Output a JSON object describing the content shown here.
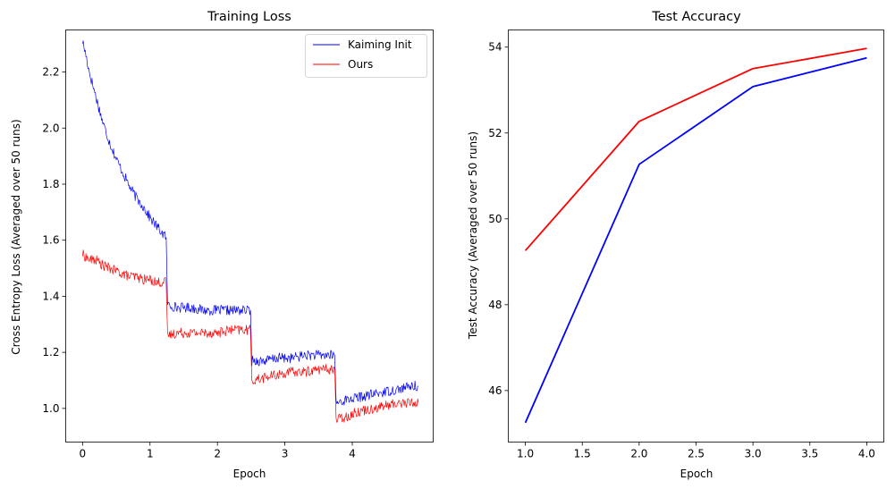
{
  "chart_data": [
    {
      "type": "line",
      "title": "Training Loss",
      "xlabel": "Epoch",
      "ylabel": "Cross Entropy Loss (Averaged over 50 runs)",
      "xlim": [
        -0.25,
        5.2
      ],
      "ylim": [
        0.88,
        2.35
      ],
      "xticks": [
        0,
        1,
        2,
        3,
        4
      ],
      "xtick_labels": [
        "0",
        "1",
        "2",
        "3",
        "4"
      ],
      "yticks": [
        1.0,
        1.2,
        1.4,
        1.6,
        1.8,
        2.0,
        2.2
      ],
      "ytick_labels": [
        "1.0",
        "1.2",
        "1.4",
        "1.6",
        "1.8",
        "2.0",
        "2.2"
      ],
      "legend": {
        "placement": "top-right"
      },
      "series": [
        {
          "name": "Kaiming Init",
          "color": "#0000ff",
          "x": [
            0,
            0.05,
            0.1,
            0.2,
            0.3,
            0.4,
            0.5,
            0.6,
            0.7,
            0.8,
            0.9,
            1.0,
            1.1,
            1.2,
            1.24,
            1.26,
            1.4,
            1.6,
            1.8,
            2.0,
            2.2,
            2.4,
            2.49,
            2.51,
            2.7,
            2.9,
            3.1,
            3.3,
            3.5,
            3.7,
            3.74,
            3.76,
            3.9,
            4.1,
            4.3,
            4.5,
            4.7,
            4.9,
            4.98
          ],
          "y": [
            2.31,
            2.26,
            2.2,
            2.11,
            2.02,
            1.95,
            1.89,
            1.84,
            1.79,
            1.75,
            1.72,
            1.68,
            1.65,
            1.62,
            1.61,
            1.37,
            1.36,
            1.36,
            1.35,
            1.35,
            1.35,
            1.35,
            1.35,
            1.17,
            1.17,
            1.18,
            1.18,
            1.19,
            1.19,
            1.19,
            1.19,
            1.02,
            1.03,
            1.04,
            1.05,
            1.06,
            1.07,
            1.08,
            1.08
          ]
        },
        {
          "name": "Ours",
          "color": "#ff0000",
          "x": [
            0,
            0.05,
            0.1,
            0.2,
            0.3,
            0.4,
            0.5,
            0.6,
            0.7,
            0.8,
            0.9,
            1.0,
            1.1,
            1.2,
            1.24,
            1.26,
            1.4,
            1.6,
            1.8,
            2.0,
            2.2,
            2.4,
            2.49,
            2.51,
            2.7,
            2.9,
            3.1,
            3.3,
            3.5,
            3.7,
            3.74,
            3.76,
            3.9,
            4.1,
            4.3,
            4.5,
            4.7,
            4.9,
            4.98
          ],
          "y": [
            1.55,
            1.54,
            1.53,
            1.53,
            1.51,
            1.5,
            1.49,
            1.48,
            1.47,
            1.47,
            1.46,
            1.46,
            1.45,
            1.45,
            1.45,
            1.26,
            1.27,
            1.27,
            1.27,
            1.27,
            1.28,
            1.28,
            1.28,
            1.1,
            1.11,
            1.12,
            1.13,
            1.13,
            1.14,
            1.14,
            1.14,
            0.96,
            0.97,
            0.99,
            1.0,
            1.01,
            1.02,
            1.02,
            1.02
          ]
        }
      ]
    },
    {
      "type": "line",
      "title": "Test Accuracy",
      "xlabel": "Epoch",
      "ylabel": "Test Accuracy (Averaged over 50 runs)",
      "xlim": [
        0.85,
        4.15
      ],
      "ylim": [
        44.8,
        54.4
      ],
      "xticks": [
        1.0,
        1.5,
        2.0,
        2.5,
        3.0,
        3.5,
        4.0
      ],
      "xtick_labels": [
        "1.0",
        "1.5",
        "2.0",
        "2.5",
        "3.0",
        "3.5",
        "4.0"
      ],
      "yticks": [
        46,
        48,
        50,
        52,
        54
      ],
      "ytick_labels": [
        "46",
        "48",
        "50",
        "52",
        "54"
      ],
      "series": [
        {
          "name": "Kaiming Init",
          "color": "#0000ff",
          "x": [
            1,
            2,
            3,
            4
          ],
          "y": [
            45.25,
            51.27,
            53.08,
            53.75
          ]
        },
        {
          "name": "Ours",
          "color": "#ff0000",
          "x": [
            1,
            2,
            3,
            4
          ],
          "y": [
            49.26,
            52.27,
            53.5,
            53.97
          ]
        }
      ]
    }
  ]
}
